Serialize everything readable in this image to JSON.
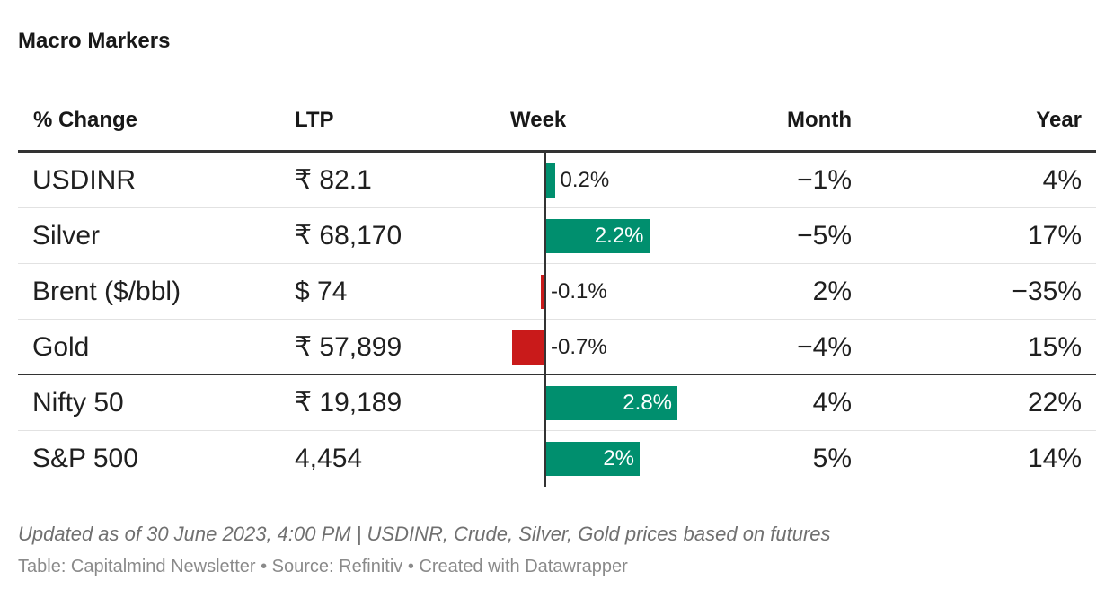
{
  "title": "Macro Markers",
  "columns": {
    "name": "% Change",
    "ltp": "LTP",
    "week": "Week",
    "month": "Month",
    "year": "Year"
  },
  "rows": [
    {
      "name": "USDINR",
      "ltp": "₹ 82.1",
      "month": "−1%",
      "year": "4%"
    },
    {
      "name": "Silver",
      "ltp": "₹ 68,170",
      "month": "−5%",
      "year": "17%"
    },
    {
      "name": "Brent ($/bbl)",
      "ltp": "$ 74",
      "month": "2%",
      "year": "−35%"
    },
    {
      "name": "Gold",
      "ltp": "₹ 57,899",
      "month": "−4%",
      "year": "15%"
    },
    {
      "name": "Nifty 50",
      "ltp": "₹ 19,189",
      "month": "4%",
      "year": "22%"
    },
    {
      "name": "S&P 500",
      "ltp": "4,454",
      "month": "5%",
      "year": "14%"
    }
  ],
  "chart_data": {
    "type": "bar",
    "title": "Week",
    "categories": [
      "USDINR",
      "Silver",
      "Brent ($/bbl)",
      "Gold",
      "Nifty 50",
      "S&P 500"
    ],
    "values": [
      0.2,
      2.2,
      -0.1,
      -0.7,
      2.8,
      2.0
    ],
    "labels": [
      "0.2%",
      "2.2%",
      "-0.1%",
      "-0.7%",
      "2.8%",
      "2%"
    ],
    "unit": "%",
    "colors": {
      "positive": "#008f6e",
      "negative": "#c91a1a"
    }
  },
  "footer": {
    "notes": "Updated as of 30 June 2023, 4:00 PM | USDINR, Crude, Silver, Gold prices based on futures",
    "credit": "Table: Capitalmind Newsletter • Source: Refinitiv • Created with Datawrapper"
  }
}
